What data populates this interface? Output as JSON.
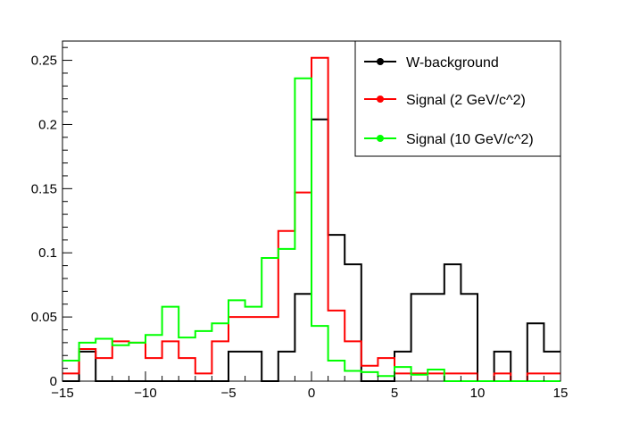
{
  "chart_data": {
    "type": "histogram",
    "bin_edges": [
      -15,
      14
    ],
    "bin_width": 1,
    "xlim": [
      -15,
      15
    ],
    "ylim": [
      0,
      0.265
    ],
    "x_ticks": [
      -15,
      -10,
      -5,
      0,
      5,
      10,
      15
    ],
    "x_tick_labels": [
      "−15",
      "−10",
      "−5",
      "0",
      "5",
      "10",
      "15"
    ],
    "y_ticks": [
      0,
      0.05,
      0.1,
      0.15,
      0.2,
      0.25
    ],
    "y_tick_labels": [
      "0",
      "0.05",
      "0.1",
      "0.15",
      "0.2",
      "0.25"
    ],
    "grid": false,
    "legend_position": "top-right",
    "series": [
      {
        "name": "W-background",
        "color": "#000000",
        "values": [
          0.0,
          0.023,
          0.0,
          0.0,
          0.0,
          0.0,
          0.0,
          0.0,
          0.0,
          0.0,
          0.023,
          0.023,
          0.0,
          0.023,
          0.068,
          0.204,
          0.114,
          0.091,
          0.0,
          0.0,
          0.023,
          0.068,
          0.068,
          0.091,
          0.068,
          0.0,
          0.023,
          0.0,
          0.045,
          0.023
        ]
      },
      {
        "name": "Signal (2 GeV/c^2)",
        "color": "#ff0000",
        "values": [
          0.006,
          0.025,
          0.018,
          0.031,
          0.03,
          0.018,
          0.031,
          0.018,
          0.006,
          0.031,
          0.05,
          0.05,
          0.05,
          0.117,
          0.147,
          0.252,
          0.055,
          0.031,
          0.012,
          0.018,
          0.006,
          0.006,
          0.006,
          0.006,
          0.006,
          0.0,
          0.006,
          0.0,
          0.006,
          0.006
        ]
      },
      {
        "name": "Signal (10 GeV/c^2)",
        "color": "#00ff00",
        "values": [
          0.016,
          0.03,
          0.033,
          0.028,
          0.03,
          0.036,
          0.058,
          0.034,
          0.039,
          0.045,
          0.063,
          0.058,
          0.096,
          0.103,
          0.236,
          0.043,
          0.016,
          0.008,
          0.007,
          0.004,
          0.011,
          0.005,
          0.009,
          0.0,
          0.0,
          0.0,
          0.0,
          0.0,
          0.0,
          0.0
        ]
      }
    ]
  }
}
